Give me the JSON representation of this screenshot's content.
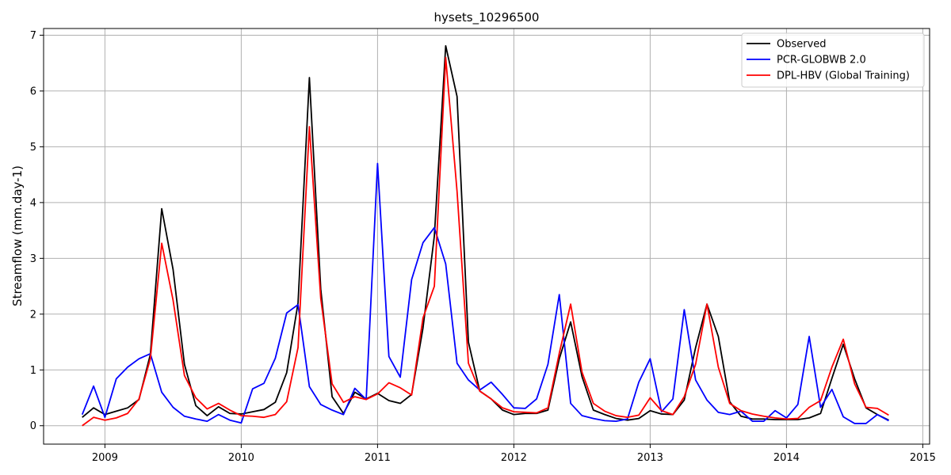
{
  "chart_data": {
    "type": "line",
    "title": "hysets_10296500",
    "xlabel": "",
    "ylabel": "Streamflow (mm.day-1)",
    "xlim": [
      2008.55,
      2015.05
    ],
    "ylim": [
      -0.33,
      7.12
    ],
    "x_ticks": [
      2009,
      2010,
      2011,
      2012,
      2013,
      2014,
      2015
    ],
    "x_tick_labels": [
      "2009",
      "2010",
      "2011",
      "2012",
      "2013",
      "2014",
      "2015"
    ],
    "y_ticks": [
      0,
      1,
      2,
      3,
      4,
      5,
      6,
      7
    ],
    "y_tick_labels": [
      "0",
      "1",
      "2",
      "3",
      "4",
      "5",
      "6",
      "7"
    ],
    "grid": true,
    "legend_position": "top-right",
    "start": "2008-11",
    "x": [
      "2008-11",
      "2008-12",
      "2009-01",
      "2009-02",
      "2009-03",
      "2009-04",
      "2009-05",
      "2009-06",
      "2009-07",
      "2009-08",
      "2009-09",
      "2009-10",
      "2009-11",
      "2009-12",
      "2010-01",
      "2010-02",
      "2010-03",
      "2010-04",
      "2010-05",
      "2010-06",
      "2010-07",
      "2010-08",
      "2010-09",
      "2010-10",
      "2010-11",
      "2010-12",
      "2011-01",
      "2011-02",
      "2011-03",
      "2011-04",
      "2011-05",
      "2011-06",
      "2011-07",
      "2011-08",
      "2011-09",
      "2011-10",
      "2011-11",
      "2011-12",
      "2012-01",
      "2012-02",
      "2012-03",
      "2012-04",
      "2012-05",
      "2012-06",
      "2012-07",
      "2012-08",
      "2012-09",
      "2012-10",
      "2012-11",
      "2012-12",
      "2013-01",
      "2013-02",
      "2013-03",
      "2013-04",
      "2013-05",
      "2013-06",
      "2013-07",
      "2013-08",
      "2013-09",
      "2013-10",
      "2013-11",
      "2013-12",
      "2014-01",
      "2014-02",
      "2014-03",
      "2014-04",
      "2014-05",
      "2014-06",
      "2014-07",
      "2014-08",
      "2014-09",
      "2014-10"
    ],
    "series": [
      {
        "name": "Observed",
        "color": "#000000",
        "values": [
          0.15,
          0.32,
          0.2,
          0.26,
          0.32,
          0.47,
          1.28,
          3.89,
          2.8,
          1.1,
          0.36,
          0.18,
          0.34,
          0.22,
          0.21,
          0.25,
          0.29,
          0.42,
          0.95,
          2.2,
          6.24,
          2.45,
          0.52,
          0.22,
          0.6,
          0.48,
          0.58,
          0.45,
          0.4,
          0.56,
          1.75,
          3.4,
          6.81,
          5.9,
          1.5,
          0.62,
          0.48,
          0.28,
          0.2,
          0.22,
          0.22,
          0.28,
          1.2,
          1.86,
          0.88,
          0.28,
          0.2,
          0.13,
          0.1,
          0.13,
          0.27,
          0.21,
          0.2,
          0.46,
          1.4,
          2.18,
          1.6,
          0.43,
          0.17,
          0.12,
          0.12,
          0.11,
          0.11,
          0.11,
          0.14,
          0.22,
          0.85,
          1.46,
          0.84,
          0.32,
          0.2,
          0.1
        ]
      },
      {
        "name": "PCR-GLOBWB 2.0",
        "color": "#0000ff",
        "values": [
          0.2,
          0.71,
          0.15,
          0.84,
          1.05,
          1.2,
          1.29,
          0.6,
          0.33,
          0.17,
          0.12,
          0.08,
          0.2,
          0.1,
          0.05,
          0.66,
          0.76,
          1.21,
          2.02,
          2.17,
          0.7,
          0.38,
          0.28,
          0.2,
          0.67,
          0.47,
          4.7,
          1.24,
          0.87,
          2.62,
          3.28,
          3.55,
          2.9,
          1.12,
          0.82,
          0.64,
          0.78,
          0.56,
          0.32,
          0.31,
          0.48,
          1.1,
          2.35,
          0.4,
          0.18,
          0.13,
          0.09,
          0.08,
          0.12,
          0.78,
          1.2,
          0.25,
          0.48,
          2.08,
          0.82,
          0.46,
          0.24,
          0.2,
          0.26,
          0.08,
          0.08,
          0.27,
          0.14,
          0.38,
          1.6,
          0.33,
          0.65,
          0.16,
          0.04,
          0.04,
          0.2,
          0.09
        ]
      },
      {
        "name": "DPL-HBV (Global Training)",
        "color": "#ff0000",
        "values": [
          0.0,
          0.15,
          0.1,
          0.14,
          0.22,
          0.48,
          1.2,
          3.27,
          2.25,
          0.9,
          0.5,
          0.3,
          0.4,
          0.28,
          0.18,
          0.17,
          0.15,
          0.2,
          0.43,
          1.4,
          5.36,
          2.28,
          0.75,
          0.42,
          0.52,
          0.47,
          0.57,
          0.77,
          0.68,
          0.55,
          1.93,
          2.5,
          6.6,
          4.2,
          1.12,
          0.62,
          0.48,
          0.32,
          0.25,
          0.24,
          0.23,
          0.32,
          1.3,
          2.18,
          0.96,
          0.4,
          0.26,
          0.18,
          0.15,
          0.19,
          0.5,
          0.27,
          0.2,
          0.52,
          1.1,
          2.18,
          1.05,
          0.4,
          0.27,
          0.21,
          0.17,
          0.14,
          0.12,
          0.13,
          0.33,
          0.45,
          1.05,
          1.55,
          0.75,
          0.33,
          0.31,
          0.19
        ]
      }
    ]
  }
}
